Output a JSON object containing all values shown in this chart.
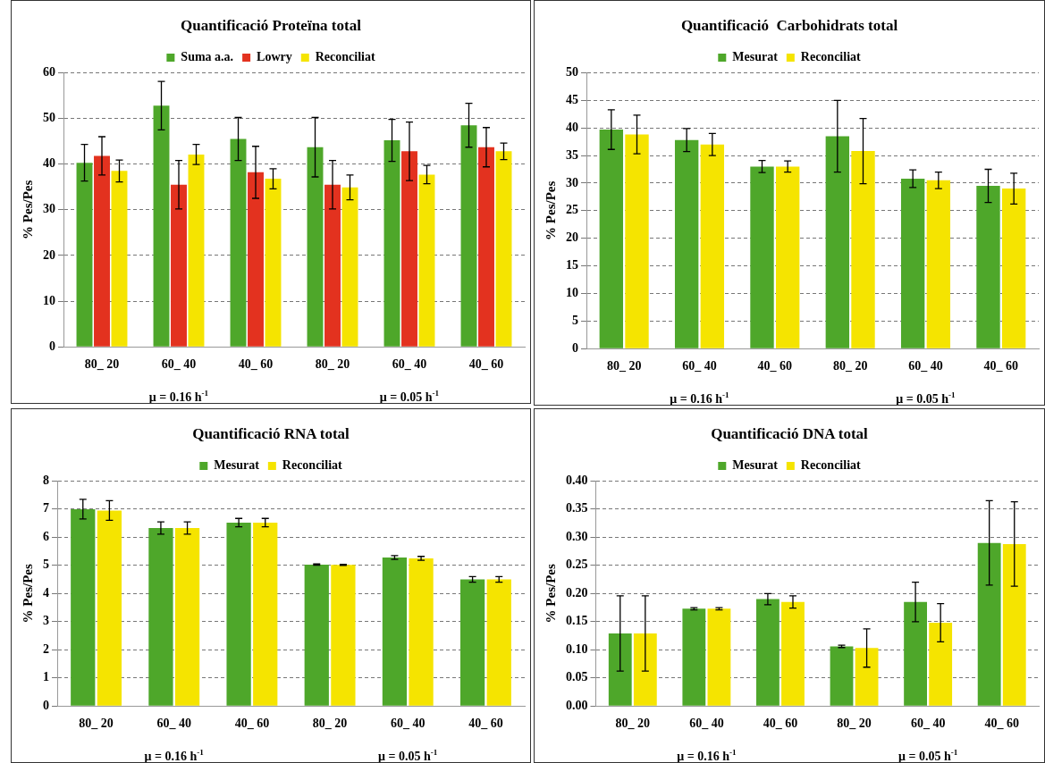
{
  "chart_data": [
    {
      "type": "bar",
      "title": "Quantificació Proteïna total",
      "ylabel": "% Pes/Pes",
      "categories": [
        "80_ 20",
        "60_ 40",
        "40_ 60",
        "80_ 20",
        "60_ 40",
        "40_ 60"
      ],
      "annotations": [
        "μ = 0.16 h$^{-1}$",
        "μ = 0.05 h$^{-1}$"
      ],
      "series": [
        {
          "name": "Suma a.a.",
          "color": "#4ea72a",
          "values": [
            40.3,
            52.8,
            45.5,
            43.7,
            45.2,
            48.5
          ],
          "errors": [
            4,
            5.3,
            4.7,
            6.5,
            4.6,
            4.8
          ]
        },
        {
          "name": "Lowry",
          "color": "#e3321f",
          "values": [
            41.8,
            35.5,
            38.2,
            35.5,
            42.8,
            43.7
          ],
          "errors": [
            4.2,
            5.3,
            5.7,
            5.3,
            6.4,
            4.3
          ]
        },
        {
          "name": "Reconciliat",
          "color": "#f5e400",
          "values": [
            38.5,
            42.1,
            36.8,
            34.9,
            37.7,
            42.8
          ],
          "errors": [
            2.4,
            2.2,
            2.2,
            2.7,
            2,
            1.8
          ]
        }
      ],
      "ylim": [
        0,
        60
      ],
      "yticks": [
        0,
        10,
        20,
        30,
        40,
        50,
        60
      ],
      "grid": "y",
      "legend": "top"
    },
    {
      "type": "bar",
      "title": "Quantificació  Carbohidrats total",
      "ylabel": "% Pes/Pes",
      "categories": [
        "80_ 20",
        "60_ 40",
        "40_ 60",
        "80_ 20",
        "60_ 40",
        "40_ 60"
      ],
      "annotations": [
        "μ = 0.16 h$^{-1}$",
        "μ = 0.05 h$^{-1}$"
      ],
      "series": [
        {
          "name": "Mesurat",
          "color": "#4ea72a",
          "values": [
            39.7,
            37.8,
            33.0,
            38.5,
            30.8,
            29.5
          ],
          "errors": [
            3.6,
            2.1,
            1.1,
            6.5,
            1.6,
            3
          ]
        },
        {
          "name": "Reconciliat",
          "color": "#f5e400",
          "values": [
            38.8,
            37.0,
            33.0,
            35.8,
            30.5,
            29.0
          ],
          "errors": [
            3.5,
            2,
            1,
            5.9,
            1.5,
            2.8
          ]
        }
      ],
      "ylim": [
        0,
        50
      ],
      "yticks": [
        0,
        5,
        10,
        15,
        20,
        25,
        30,
        35,
        40,
        45,
        50
      ],
      "grid": "y",
      "legend": "top"
    },
    {
      "type": "bar",
      "title": "Quantificació RNA total",
      "ylabel": "% Pes/Pes",
      "categories": [
        "80_ 20",
        "60_ 40",
        "40_ 60",
        "80_ 20",
        "60_ 40",
        "40_ 60"
      ],
      "annotations": [
        "μ = 0.16 h$^{-1}$",
        "μ = 0.05 h$^{-1}$"
      ],
      "series": [
        {
          "name": "Mesurat",
          "color": "#4ea72a",
          "values": [
            7.0,
            6.33,
            6.52,
            5.03,
            5.28,
            4.5
          ],
          "errors": [
            0.35,
            0.22,
            0.15,
            0.02,
            0.07,
            0.1
          ]
        },
        {
          "name": "Reconciliat",
          "color": "#f5e400",
          "values": [
            6.95,
            6.33,
            6.52,
            5.02,
            5.25,
            4.5
          ],
          "errors": [
            0.35,
            0.22,
            0.15,
            0.02,
            0.07,
            0.1
          ]
        }
      ],
      "ylim": [
        0,
        8
      ],
      "yticks": [
        0,
        1,
        2,
        3,
        4,
        5,
        6,
        7,
        8
      ],
      "grid": "y",
      "legend": "top"
    },
    {
      "type": "bar",
      "title": "Quantificació DNA total",
      "ylabel": "% Pes/Pes",
      "categories": [
        "80_ 20",
        "60_ 40",
        "40_ 60",
        "80_ 20",
        "60_ 40",
        "40_ 60"
      ],
      "annotations": [
        "μ = 0.16 h$^{-1}$",
        "μ = 0.05 h$^{-1}$"
      ],
      "series": [
        {
          "name": "Mesurat",
          "color": "#4ea72a",
          "values": [
            0.129,
            0.173,
            0.19,
            0.106,
            0.185,
            0.29
          ],
          "errors": [
            0.067,
            0.002,
            0.01,
            0.002,
            0.035,
            0.075
          ]
        },
        {
          "name": "Reconciliat",
          "color": "#f5e400",
          "values": [
            0.129,
            0.173,
            0.185,
            0.103,
            0.148,
            0.288
          ],
          "errors": [
            0.067,
            0.002,
            0.011,
            0.034,
            0.034,
            0.075
          ]
        }
      ],
      "ylim": [
        0,
        0.4
      ],
      "yticks": [
        {
          "value": 0,
          "label": "0.00"
        },
        {
          "value": 0.05,
          "label": "0.05"
        },
        {
          "value": 0.1,
          "label": "0.10"
        },
        {
          "value": 0.15,
          "label": "0.15"
        },
        {
          "value": 0.2,
          "label": "0.20"
        },
        {
          "value": 0.25,
          "label": "0.25"
        },
        {
          "value": 0.3,
          "label": "0.30"
        },
        {
          "value": 0.35,
          "label": "0.35"
        },
        {
          "value": 0.4,
          "label": "0.40"
        }
      ],
      "grid": "y",
      "legend": "top"
    }
  ]
}
